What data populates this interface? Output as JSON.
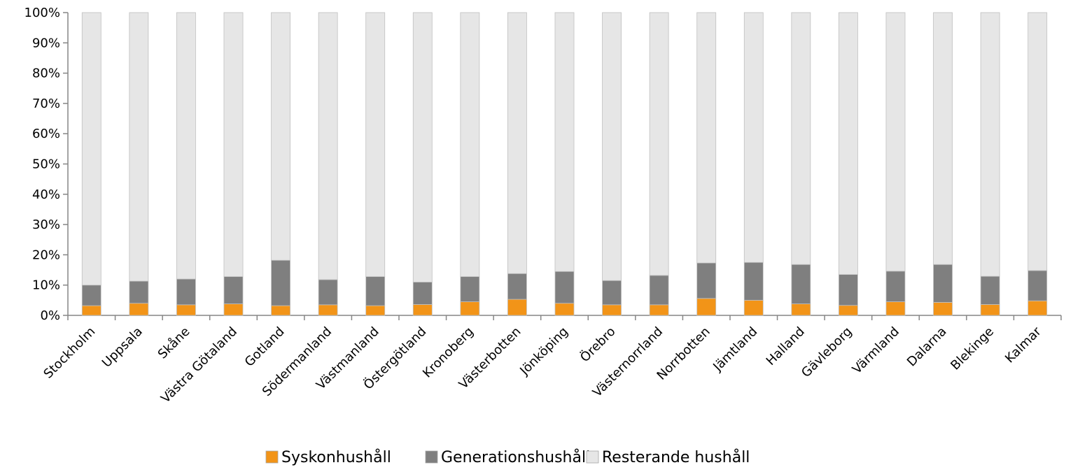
{
  "chart_data": {
    "type": "bar",
    "stacked": true,
    "percent_scale": true,
    "categories": [
      "Stockholm",
      "Uppsala",
      "Skåne",
      "Västra Götaland",
      "Gotland",
      "Södermanland",
      "Västmanland",
      "Östergötland",
      "Kronoberg",
      "Västerbotten",
      "Jönköping",
      "Örebro",
      "Västernorrland",
      "Norrbotten",
      "Jämtland",
      "Halland",
      "Gävleborg",
      "Värmland",
      "Dalarna",
      "Blekinge",
      "Kalmar"
    ],
    "series": [
      {
        "name": "Syskonhushåll",
        "color": "#f29418",
        "values": [
          3.2,
          4.0,
          3.5,
          3.8,
          3.2,
          3.5,
          3.2,
          3.6,
          4.5,
          5.3,
          4.0,
          3.5,
          3.5,
          5.6,
          5.0,
          3.8,
          3.3,
          4.5,
          4.3,
          3.6,
          4.8
        ]
      },
      {
        "name": "Generationshushåll",
        "color": "#7f7f7f",
        "values": [
          6.8,
          7.3,
          8.5,
          9.0,
          15.0,
          8.3,
          9.6,
          7.4,
          8.3,
          8.5,
          10.5,
          8.0,
          9.7,
          11.7,
          12.5,
          13.0,
          10.2,
          10.1,
          12.5,
          9.3,
          10.0
        ]
      },
      {
        "name": "Resterande hushåll",
        "color": "#e6e6e6",
        "values": [
          90.0,
          88.7,
          88.0,
          87.2,
          81.8,
          88.2,
          87.2,
          89.0,
          87.2,
          86.2,
          85.5,
          88.5,
          86.8,
          82.7,
          82.5,
          83.2,
          86.5,
          85.4,
          83.2,
          87.1,
          85.2
        ]
      }
    ],
    "ylim": [
      0,
      100
    ],
    "yticks": [
      "0%",
      "10%",
      "20%",
      "30%",
      "40%",
      "50%",
      "60%",
      "70%",
      "80%",
      "90%",
      "100%"
    ],
    "ytick_values": [
      0,
      10,
      20,
      30,
      40,
      50,
      60,
      70,
      80,
      90,
      100
    ],
    "legend_position": "bottom",
    "grid": false
  }
}
